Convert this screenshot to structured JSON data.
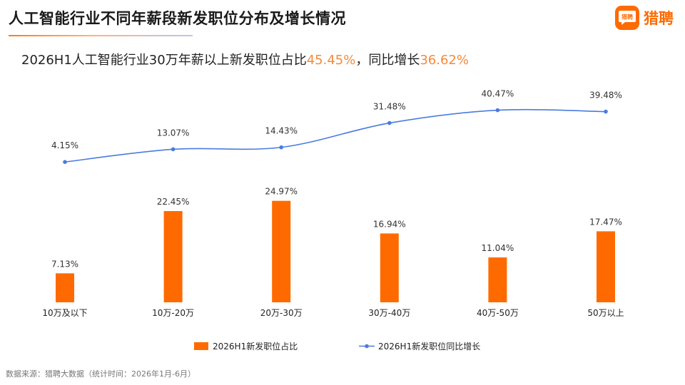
{
  "header": {
    "title": "人工智能行业不同年薪段新发职位分布及增长情况",
    "logo_text": "猎聘",
    "logo_mark": "猎聘"
  },
  "subtitle": {
    "prefix": "2026H1人工智能行业30万年薪以上新发职位占比",
    "value1": "45.45%",
    "middle": "，同比增长",
    "value2": "36.62%"
  },
  "source": "数据来源：猎聘大数据（统计时间：2026年1月-6月）",
  "colors": {
    "bar": "#ff6a00",
    "line": "#4a7be0",
    "highlight": "#f7893a"
  },
  "chart_data": {
    "type": "bar",
    "categories": [
      "10万及以下",
      "10万-20万",
      "20万-30万",
      "30万-40万",
      "40万-50万",
      "50万以上"
    ],
    "series": [
      {
        "name": "2026H1新发职位占比",
        "type": "bar",
        "values": [
          7.13,
          22.45,
          24.97,
          16.94,
          11.04,
          17.47
        ],
        "labels": [
          "7.13%",
          "22.45%",
          "24.97%",
          "16.94%",
          "11.04%",
          "17.47%"
        ]
      },
      {
        "name": "2026H1新发职位同比增长",
        "type": "line",
        "values": [
          4.15,
          13.07,
          14.43,
          31.48,
          40.47,
          39.48
        ],
        "labels": [
          "4.15%",
          "13.07%",
          "14.43%",
          "31.48%",
          "40.47%",
          "39.48%"
        ]
      }
    ],
    "legend_position": "bottom",
    "grid": false
  }
}
